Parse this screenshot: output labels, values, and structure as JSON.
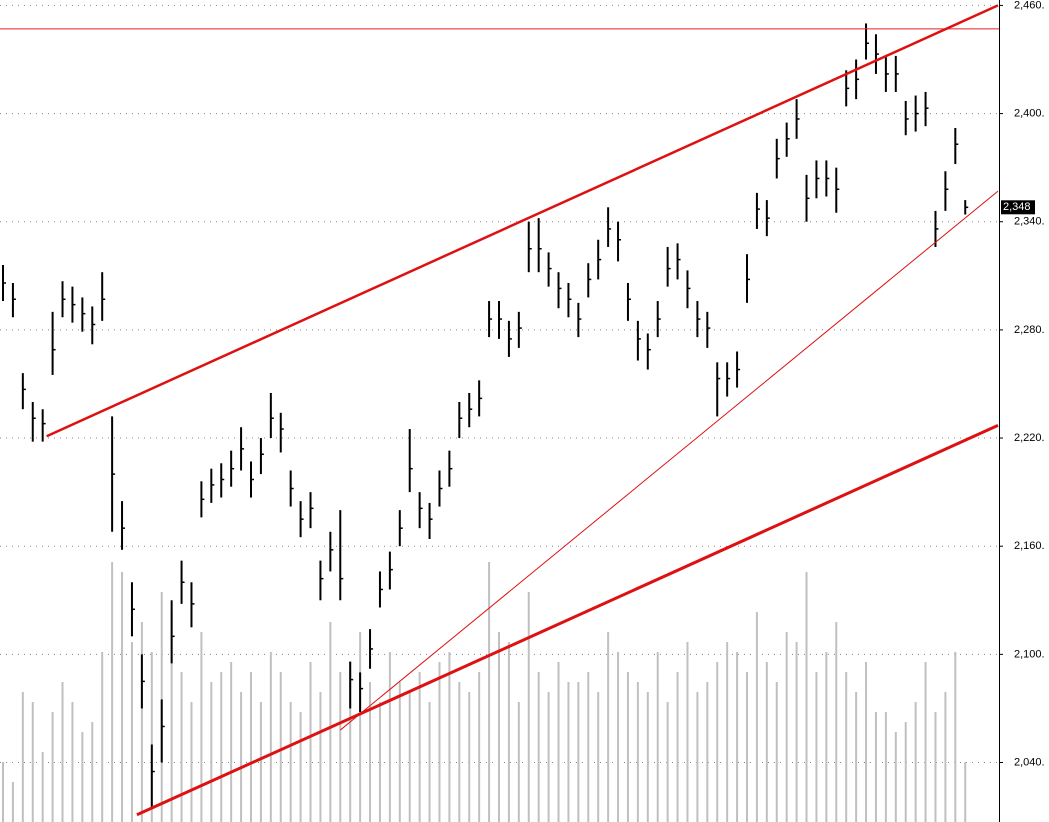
{
  "chart_data": {
    "type": "ohlc",
    "high": [
      2316,
      2306,
      2256,
      2240,
      2236,
      2290,
      2307,
      2304,
      2298,
      2293,
      2312,
      2232,
      2185,
      2140,
      2100,
      2050,
      2075,
      2130,
      2152,
      2140,
      2196,
      2203,
      2206,
      2213,
      2226,
      2207,
      2220,
      2245,
      2234,
      2202,
      2185,
      2190,
      2152,
      2168,
      2180,
      2096,
      2090,
      2114,
      2146,
      2157,
      2180,
      2225,
      2190,
      2184,
      2202,
      2213,
      2240,
      2245,
      2252,
      2296,
      2296,
      2285,
      2290,
      2340,
      2342,
      2323,
      2312,
      2306,
      2295,
      2317,
      2330,
      2348,
      2340,
      2306,
      2285,
      2278,
      2296,
      2326,
      2328,
      2313,
      2296,
      2290,
      2262,
      2262,
      2268,
      2322,
      2356,
      2352,
      2386,
      2395,
      2408,
      2366,
      2374,
      2374,
      2370,
      2424,
      2430,
      2450,
      2444,
      2432,
      2432,
      2407,
      2410,
      2412,
      2346,
      2368,
      2392,
      2352
    ],
    "low": [
      2296,
      2287,
      2236,
      2218,
      2218,
      2255,
      2287,
      2284,
      2279,
      2272,
      2285,
      2168,
      2158,
      2110,
      2070,
      2015,
      2040,
      2095,
      2128,
      2115,
      2176,
      2184,
      2187,
      2193,
      2202,
      2187,
      2200,
      2220,
      2212,
      2182,
      2165,
      2170,
      2130,
      2146,
      2130,
      2070,
      2068,
      2092,
      2126,
      2136,
      2160,
      2190,
      2170,
      2164,
      2182,
      2193,
      2220,
      2226,
      2232,
      2276,
      2275,
      2265,
      2270,
      2312,
      2312,
      2304,
      2292,
      2287,
      2276,
      2298,
      2308,
      2326,
      2318,
      2285,
      2263,
      2258,
      2276,
      2304,
      2308,
      2292,
      2276,
      2270,
      2232,
      2243,
      2248,
      2295,
      2336,
      2332,
      2364,
      2376,
      2386,
      2340,
      2353,
      2354,
      2345,
      2404,
      2408,
      2430,
      2422,
      2412,
      2412,
      2388,
      2390,
      2393,
      2326,
      2346,
      2372,
      2344
    ],
    "close": [
      2306,
      2297,
      2247,
      2231,
      2228,
      2269,
      2297,
      2294,
      2289,
      2283,
      2297,
      2200,
      2170,
      2125,
      2085,
      2035,
      2060,
      2110,
      2140,
      2128,
      2186,
      2194,
      2197,
      2203,
      2214,
      2197,
      2211,
      2231,
      2225,
      2192,
      2175,
      2181,
      2142,
      2158,
      2142,
      2086,
      2081,
      2103,
      2136,
      2147,
      2170,
      2203,
      2181,
      2175,
      2192,
      2203,
      2231,
      2236,
      2242,
      2286,
      2286,
      2275,
      2281,
      2325,
      2325,
      2314,
      2303,
      2297,
      2286,
      2308,
      2319,
      2336,
      2330,
      2297,
      2275,
      2269,
      2286,
      2314,
      2319,
      2303,
      2286,
      2281,
      2253,
      2253,
      2258,
      2308,
      2347,
      2342,
      2375,
      2386,
      2397,
      2353,
      2364,
      2364,
      2358,
      2414,
      2419,
      2439,
      2433,
      2422,
      2422,
      2397,
      2400,
      2403,
      2336,
      2358,
      2383,
      2348
    ],
    "volume": [
      60,
      40,
      130,
      120,
      70,
      110,
      140,
      120,
      90,
      100,
      170,
      260,
      250,
      180,
      200,
      170,
      230,
      210,
      150,
      120,
      190,
      140,
      150,
      160,
      130,
      150,
      120,
      170,
      150,
      120,
      110,
      160,
      130,
      200,
      150,
      160,
      190,
      140,
      120,
      170,
      140,
      130,
      150,
      120,
      160,
      170,
      140,
      130,
      150,
      260,
      190,
      180,
      120,
      230,
      150,
      130,
      160,
      140,
      140,
      150,
      130,
      190,
      170,
      150,
      140,
      130,
      170,
      120,
      150,
      180,
      130,
      140,
      160,
      180,
      170,
      150,
      210,
      160,
      140,
      190,
      180,
      250,
      150,
      170,
      200,
      150,
      130,
      160,
      110,
      110,
      90,
      100,
      120,
      160,
      110,
      130,
      170,
      60
    ],
    "color": "#000000",
    "volume_color": "#c0c0c0",
    "ylim": [
      2007,
      2463
    ],
    "yticks": [
      {
        "value": 2040,
        "label": "2,040."
      },
      {
        "value": 2100,
        "label": "2,100."
      },
      {
        "value": 2160,
        "label": "2,160."
      },
      {
        "value": 2220,
        "label": "2,220."
      },
      {
        "value": 2280,
        "label": "2,280."
      },
      {
        "value": 2340,
        "label": "2,340."
      },
      {
        "value": 2400,
        "label": "2,400."
      },
      {
        "value": 2460,
        "label": "2,460."
      }
    ],
    "grid": true,
    "last_price": {
      "value": 2348,
      "label": "2,348"
    },
    "horizontal_lines": [
      {
        "y": 2447,
        "color": "#e02020",
        "width": 1
      }
    ],
    "trend_lines": [
      {
        "from": [
          4.4,
          2221
        ],
        "to": [
          100.3,
          2460
        ],
        "color": "#dd1111",
        "width": 2.5
      },
      {
        "from": [
          13.5,
          2011
        ],
        "to": [
          100.3,
          2227
        ],
        "color": "#dd1111",
        "width": 3
      },
      {
        "from": [
          34.0,
          2058
        ],
        "to": [
          100.3,
          2357
        ],
        "color": "#dd1111",
        "width": 1
      }
    ]
  }
}
